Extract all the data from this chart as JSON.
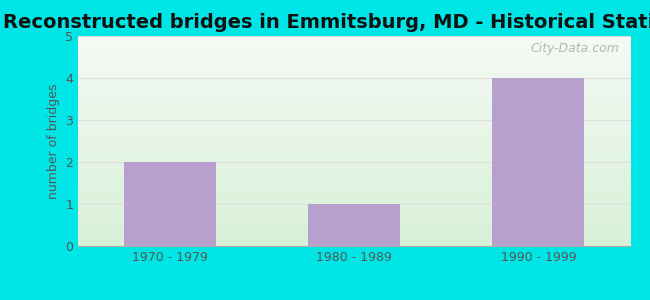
{
  "title": "Reconstructed bridges in Emmitsburg, MD - Historical Statistics",
  "categories": [
    "1970 - 1979",
    "1980 - 1989",
    "1990 - 1999"
  ],
  "values": [
    2,
    1,
    4
  ],
  "bar_color": "#b8a0ce",
  "background_color": "#00e5e5",
  "ylabel": "number of bridges",
  "ylim": [
    0,
    5
  ],
  "yticks": [
    0,
    1,
    2,
    3,
    4,
    5
  ],
  "title_fontsize": 14,
  "axis_label_fontsize": 9,
  "tick_fontsize": 9,
  "bar_width": 0.5,
  "grid_color": "#dddddd",
  "watermark_text": "City-Data.com",
  "grad_top": "#f5faf5",
  "grad_bottom": "#d8f0d8"
}
